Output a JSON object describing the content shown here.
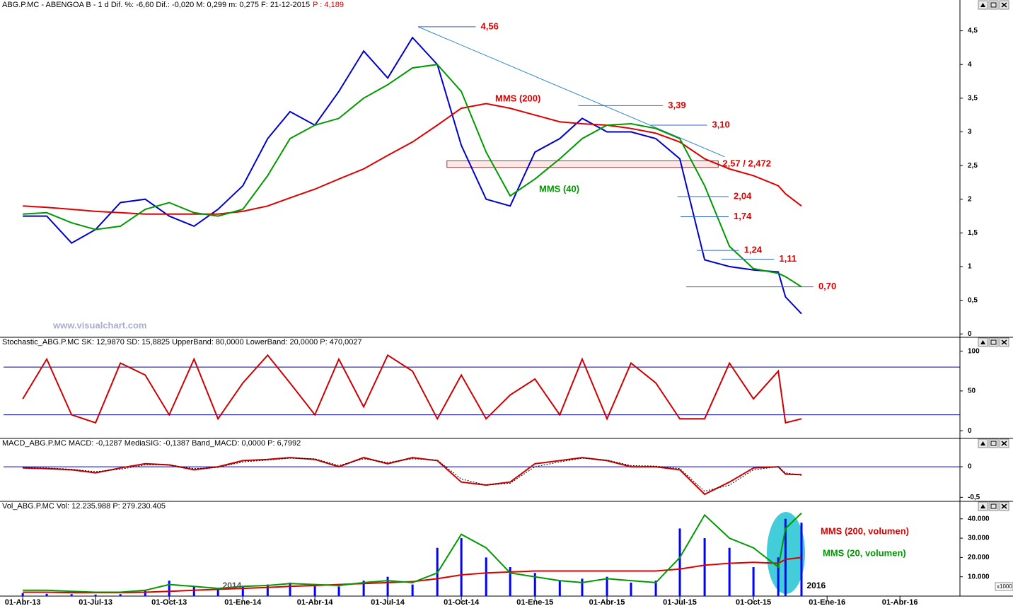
{
  "chart_data": [
    {
      "type": "line",
      "title": "ABG.P.MC - ABENGOA B - 1 d Dif. %: -6,60 Dif.: -0,020 M: 0,299 m: 0,275 F: 21-12-2015",
      "title_extra": "P : 4,189",
      "watermark": "www.visualchart.com",
      "x": [
        "2013-04-01",
        "2013-05-01",
        "2013-06-01",
        "2013-07-01",
        "2013-08-01",
        "2013-09-01",
        "2013-10-01",
        "2013-11-01",
        "2013-12-01",
        "2014-01-01",
        "2014-02-01",
        "2014-03-01",
        "2014-04-01",
        "2014-05-01",
        "2014-06-01",
        "2014-07-01",
        "2014-08-01",
        "2014-09-01",
        "2014-10-01",
        "2014-11-01",
        "2014-12-01",
        "2015-01-01",
        "2015-02-01",
        "2015-03-01",
        "2015-04-01",
        "2015-05-01",
        "2015-06-01",
        "2015-07-01",
        "2015-08-01",
        "2015-09-01",
        "2015-10-01",
        "2015-11-01",
        "2015-11-10",
        "2015-11-30"
      ],
      "xlim": [
        "2013-03-08",
        "2016-06-15"
      ],
      "ylim": [
        -0.06,
        4.8
      ],
      "yticks": [
        0,
        {
          "value": 0.5,
          "label": "0,5"
        },
        1,
        {
          "value": 1.5,
          "label": "1,5"
        },
        2,
        {
          "value": 2.5,
          "label": "2,5"
        },
        3,
        {
          "value": 3.5,
          "label": "3,5"
        },
        4,
        {
          "value": 4.5,
          "label": "4,5"
        }
      ],
      "series": [
        {
          "color": "#0000cc",
          "values": [
            1.75,
            1.75,
            1.35,
            1.55,
            1.95,
            2.0,
            1.75,
            1.6,
            1.85,
            2.2,
            2.9,
            3.3,
            3.1,
            3.6,
            4.2,
            3.8,
            4.4,
            4.0,
            2.8,
            2.0,
            1.9,
            2.7,
            2.9,
            3.2,
            3.0,
            3.0,
            2.9,
            2.6,
            1.1,
            1.0,
            0.95,
            0.92,
            0.55,
            0.3
          ]
        },
        {
          "name": "MMS (200)",
          "color": "#dd0000",
          "values": [
            1.9,
            1.88,
            1.85,
            1.82,
            1.8,
            1.78,
            1.78,
            1.78,
            1.78,
            1.82,
            1.9,
            2.02,
            2.15,
            2.3,
            2.45,
            2.65,
            2.85,
            3.1,
            3.35,
            3.42,
            3.35,
            3.25,
            3.15,
            3.12,
            3.1,
            3.05,
            2.98,
            2.85,
            2.6,
            2.45,
            2.35,
            2.2,
            2.08,
            1.9
          ]
        },
        {
          "name": "MMS (40)",
          "color": "#009900",
          "values": [
            1.78,
            1.8,
            1.65,
            1.55,
            1.6,
            1.85,
            1.95,
            1.8,
            1.75,
            1.85,
            2.35,
            2.9,
            3.1,
            3.2,
            3.5,
            3.7,
            3.95,
            4.0,
            3.6,
            2.7,
            2.05,
            2.3,
            2.6,
            2.9,
            3.1,
            3.12,
            3.05,
            2.9,
            2.2,
            1.3,
            0.97,
            0.9,
            0.85,
            0.7
          ]
        }
      ],
      "levels": [
        {
          "label": "4,56",
          "value": 4.56,
          "from": "2014-08-08",
          "to": "2014-10-19"
        },
        {
          "label": "3,39",
          "value": 3.39,
          "from": "2015-02-24",
          "to": "2015-06-10"
        },
        {
          "label": "3,10",
          "value": 3.1,
          "from": "2015-05-26",
          "to": "2015-08-04"
        },
        {
          "label": "2,04",
          "value": 2.04,
          "from": "2015-06-28",
          "to": "2015-08-31"
        },
        {
          "label": "1,74",
          "value": 1.74,
          "from": "2015-07-02",
          "to": "2015-08-31"
        },
        {
          "label": "1,24",
          "value": 1.24,
          "from": "2015-07-22",
          "to": "2015-09-13"
        },
        {
          "label": "1,11",
          "value": 1.11,
          "from": "2015-08-22",
          "to": "2015-10-27"
        },
        {
          "label": "0,70",
          "value": 0.7,
          "from": "2015-07-09",
          "to": "2015-12-15"
        }
      ],
      "zone": {
        "label": "2,57 / 2,472",
        "from": "2014-09-13",
        "to": "2015-08-18",
        "values": [
          2.472,
          2.57
        ]
      },
      "trendline": {
        "x": [
          "2014-08-08",
          "2015-08-26"
        ],
        "values": [
          4.56,
          2.63
        ]
      }
    },
    {
      "type": "line",
      "title": "Stochastic_ABG.P.MC SK: 12,9870 SD: 15,8825 UpperBand: 80,0000 LowerBand: 20,0000 P: 470,0027",
      "x": [
        "2013-04-01",
        "2013-05-01",
        "2013-06-01",
        "2013-07-01",
        "2013-08-01",
        "2013-09-01",
        "2013-10-01",
        "2013-11-01",
        "2013-12-01",
        "2014-01-01",
        "2014-02-01",
        "2014-03-01",
        "2014-04-01",
        "2014-05-01",
        "2014-06-01",
        "2014-07-01",
        "2014-08-01",
        "2014-09-01",
        "2014-10-01",
        "2014-11-01",
        "2014-12-01",
        "2015-01-01",
        "2015-02-01",
        "2015-03-01",
        "2015-04-01",
        "2015-05-01",
        "2015-06-01",
        "2015-07-01",
        "2015-08-01",
        "2015-09-01",
        "2015-10-01",
        "2015-11-01",
        "2015-11-10",
        "2015-11-30"
      ],
      "xlim": [
        "2013-03-08",
        "2016-06-15"
      ],
      "ylim": [
        -7,
        105
      ],
      "yticks": [
        0,
        50,
        100
      ],
      "hlines": [
        80,
        20
      ],
      "series": [
        {
          "color": "#cc0000",
          "values": [
            40,
            90,
            20,
            10,
            85,
            70,
            20,
            90,
            15,
            60,
            95,
            60,
            20,
            90,
            30,
            95,
            75,
            15,
            70,
            15,
            45,
            65,
            20,
            90,
            15,
            85,
            60,
            15,
            15,
            85,
            40,
            75,
            10,
            15
          ]
        }
      ]
    },
    {
      "type": "line",
      "title": "MACD_ABG.P.MC MACD: -0,1287 MediaSIG: -0,1387 Band_MACD: 0,0000 P: 6,7992",
      "x": [
        "2013-04-01",
        "2013-05-01",
        "2013-06-01",
        "2013-07-01",
        "2013-08-01",
        "2013-09-01",
        "2013-10-01",
        "2013-11-01",
        "2013-12-01",
        "2014-01-01",
        "2014-02-01",
        "2014-03-01",
        "2014-04-01",
        "2014-05-01",
        "2014-06-01",
        "2014-07-01",
        "2014-08-01",
        "2014-09-01",
        "2014-10-01",
        "2014-11-01",
        "2014-12-01",
        "2015-01-01",
        "2015-02-01",
        "2015-03-01",
        "2015-04-01",
        "2015-05-01",
        "2015-06-01",
        "2015-07-01",
        "2015-08-01",
        "2015-09-01",
        "2015-10-01",
        "2015-11-01",
        "2015-11-10",
        "2015-11-30"
      ],
      "xlim": [
        "2013-03-08",
        "2016-06-15"
      ],
      "ylim": [
        -0.6,
        0.29
      ],
      "yticks": [
        {
          "value": -0.5,
          "label": "-0,5"
        },
        0
      ],
      "hlines": [
        0
      ],
      "series": [
        {
          "color": "#cc0000",
          "values": [
            -0.02,
            -0.03,
            -0.05,
            -0.1,
            -0.02,
            0.05,
            0.03,
            -0.05,
            0.0,
            0.1,
            0.12,
            0.15,
            0.12,
            0.0,
            0.15,
            0.05,
            0.15,
            0.1,
            -0.25,
            -0.3,
            -0.25,
            0.05,
            0.1,
            0.15,
            0.1,
            0.0,
            0.0,
            -0.05,
            -0.45,
            -0.25,
            -0.02,
            0.0,
            -0.12,
            -0.13
          ]
        },
        {
          "color": "#000000",
          "dashed": true,
          "values": [
            -0.01,
            -0.02,
            -0.04,
            -0.08,
            -0.04,
            0.03,
            0.03,
            -0.03,
            -0.01,
            0.08,
            0.11,
            0.14,
            0.13,
            0.02,
            0.13,
            0.07,
            0.13,
            0.11,
            -0.2,
            -0.3,
            -0.27,
            0.0,
            0.08,
            0.14,
            0.11,
            0.02,
            0.01,
            -0.03,
            -0.4,
            -0.3,
            -0.05,
            0.0,
            -0.1,
            -0.14
          ]
        }
      ]
    },
    {
      "type": "bar",
      "title": "Vol_ABG.P.MC Vol: 12.235.988 P: 279.230.405",
      "y_unit": "x1000",
      "x": [
        "2013-04-01",
        "2013-05-01",
        "2013-06-01",
        "2013-07-01",
        "2013-08-01",
        "2013-09-01",
        "2013-10-01",
        "2013-11-01",
        "2013-12-01",
        "2014-01-01",
        "2014-02-01",
        "2014-03-01",
        "2014-04-01",
        "2014-05-01",
        "2014-06-01",
        "2014-07-01",
        "2014-08-01",
        "2014-09-01",
        "2014-10-01",
        "2014-11-01",
        "2014-12-01",
        "2015-01-01",
        "2015-02-01",
        "2015-03-01",
        "2015-04-01",
        "2015-05-01",
        "2015-06-01",
        "2015-07-01",
        "2015-08-01",
        "2015-09-01",
        "2015-10-01",
        "2015-11-01",
        "2015-11-10",
        "2015-11-30"
      ],
      "xlim": [
        "2013-03-08",
        "2016-06-15"
      ],
      "xticks": [
        {
          "value": "2013-04-01",
          "label": "01-Abr-13"
        },
        {
          "value": "2013-07-01",
          "label": "01-Jul-13"
        },
        {
          "value": "2013-10-01",
          "label": "01-Oct-13"
        },
        {
          "value": "2014-01-01",
          "label": "01-Ene-14"
        },
        {
          "value": "2014-04-01",
          "label": "01-Abr-14"
        },
        {
          "value": "2014-07-01",
          "label": "01-Jul-14"
        },
        {
          "value": "2014-10-01",
          "label": "01-Oct-14"
        },
        {
          "value": "2015-01-01",
          "label": "01-Ene-15"
        },
        {
          "value": "2015-04-01",
          "label": "01-Abr-15"
        },
        {
          "value": "2015-07-01",
          "label": "01-Jul-15"
        },
        {
          "value": "2015-10-01",
          "label": "01-Oct-15"
        },
        {
          "value": "2016-01-01",
          "label": "01-Ene-16"
        },
        {
          "value": "2016-04-01",
          "label": "01-Abr-16"
        }
      ],
      "year_labels": [
        {
          "value": "2014-01-01",
          "label": "2014"
        },
        {
          "value": "2016-01-01",
          "label": "2016"
        }
      ],
      "ylim": [
        0,
        44300
      ],
      "yticks": [
        {
          "value": 10000,
          "label": "10.000"
        },
        {
          "value": 20000,
          "label": "20.000"
        },
        {
          "value": 30000,
          "label": "30.000"
        },
        {
          "value": 40000,
          "label": "40.000"
        }
      ],
      "color": "#0000ff",
      "values": [
        1500,
        1200,
        1000,
        800,
        1000,
        3000,
        8000,
        5000,
        4000,
        5000,
        6000,
        7000,
        6000,
        5000,
        8000,
        10000,
        6000,
        25000,
        30000,
        20000,
        15000,
        12000,
        8000,
        9000,
        10000,
        7000,
        8000,
        35000,
        30000,
        25000,
        15000,
        20000,
        40000,
        38000
      ],
      "series": [
        {
          "name": "MMS (200, volumen)",
          "color": "#dd0000",
          "values": [
            2000,
            2000,
            1800,
            1800,
            1800,
            2000,
            2500,
            3000,
            3500,
            4000,
            4500,
            5000,
            5500,
            6000,
            6500,
            7000,
            7500,
            9000,
            11000,
            12000,
            12500,
            13000,
            13000,
            13000,
            13000,
            13000,
            13000,
            14000,
            16000,
            17000,
            17500,
            17000,
            19000,
            20000
          ]
        },
        {
          "name": "MMS (20, volumen)",
          "color": "#009900",
          "values": [
            3000,
            3000,
            2500,
            2000,
            2000,
            3000,
            6000,
            5000,
            4000,
            5000,
            5500,
            6500,
            6000,
            5500,
            7000,
            8000,
            7000,
            12000,
            32000,
            25000,
            12000,
            10000,
            8000,
            7000,
            9000,
            8000,
            7000,
            20000,
            42000,
            30000,
            25000,
            15000,
            35000,
            43000
          ]
        }
      ]
    }
  ]
}
